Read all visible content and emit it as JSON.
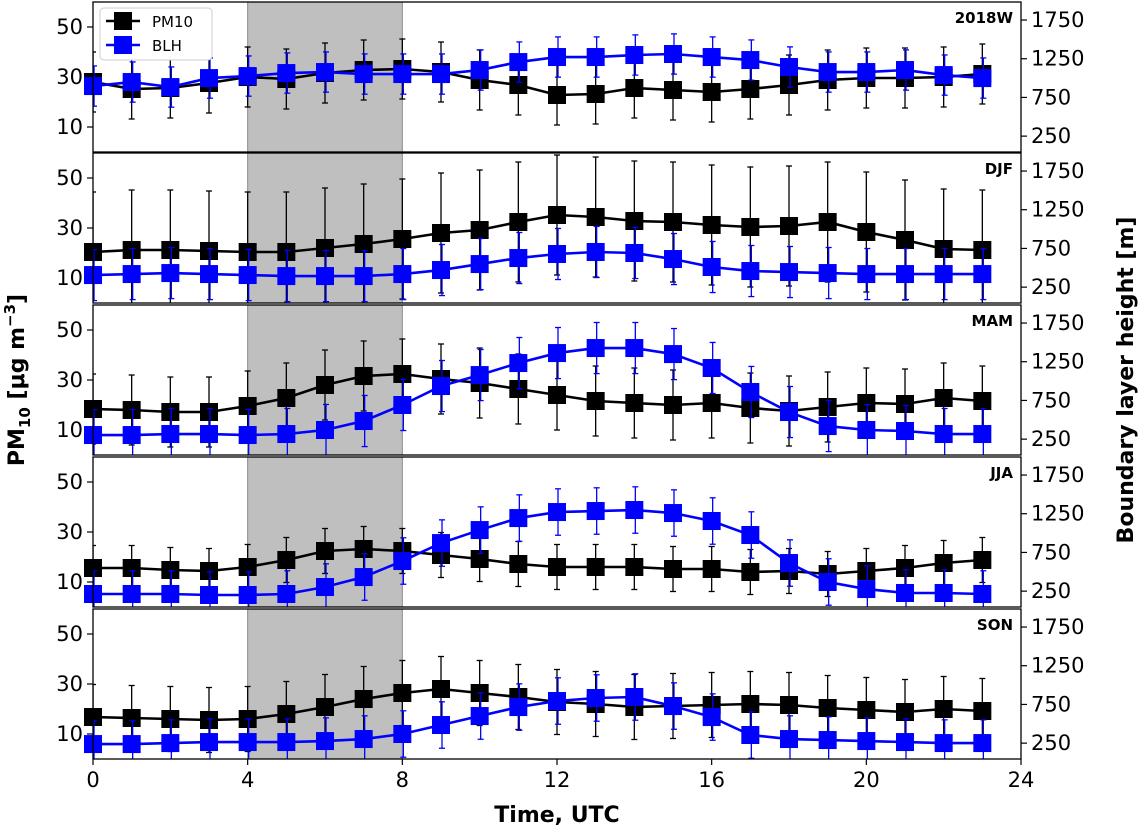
{
  "chart_data": {
    "type": "line",
    "xlabel": "Time, UTC",
    "ylabel_left": "PM",
    "ylabel_left_sub": "10",
    "ylabel_left_units": " [μg m",
    "ylabel_left_sup": "−3",
    "ylabel_left_end": "]",
    "ylabel_right": "Boundary layer height [m]",
    "xlim": [
      0,
      24
    ],
    "xticks": [
      "0",
      "4",
      "8",
      "12",
      "16",
      "20",
      "24"
    ],
    "ylim_left": [
      0,
      60
    ],
    "yticks_left": [
      "10",
      "30",
      "50"
    ],
    "ylim_right": [
      45,
      1983
    ],
    "yticks_right": [
      "250",
      "750",
      "1250",
      "1750"
    ],
    "shaded_region": [
      4,
      8
    ],
    "legend": {
      "placement": "top-left",
      "entries": [
        "PM10",
        "BLH"
      ]
    },
    "colors": {
      "PM10": "#000000",
      "BLH": "#0000ff",
      "shade": "#bfbfbf"
    },
    "x": [
      0,
      1,
      2,
      3,
      4,
      5,
      6,
      7,
      8,
      9,
      10,
      11,
      12,
      13,
      14,
      15,
      16,
      17,
      18,
      19,
      20,
      21,
      22,
      23
    ],
    "panels": [
      {
        "label": "2018W",
        "pm10": [
          28,
          25.2,
          25.6,
          27.6,
          30,
          29.2,
          31.6,
          32.8,
          33.2,
          32,
          28.8,
          26.8,
          22.8,
          23.2,
          25.6,
          24.8,
          24,
          25.2,
          26.8,
          28.8,
          29.6,
          29.6,
          30,
          31.2
        ],
        "pm10_err": 12,
        "blh": [
          897,
          949,
          884,
          1000,
          1026,
          1065,
          1078,
          1052,
          1052,
          1052,
          1104,
          1207,
          1272,
          1272,
          1298,
          1311,
          1272,
          1233,
          1143,
          1078,
          1078,
          1104,
          1039,
          1000
        ],
        "blh_err": 260
      },
      {
        "label": "DJF",
        "pm10": [
          20.4,
          21.2,
          21.2,
          20.8,
          20.4,
          20.4,
          22,
          23.6,
          25.6,
          28,
          29.2,
          32.4,
          35.2,
          34.4,
          32.8,
          32.4,
          31.2,
          30.4,
          30.8,
          32.4,
          28.4,
          25.2,
          21.6,
          21.2
        ],
        "pm10_err": 24,
        "blh": [
          406,
          419,
          432,
          419,
          406,
          393,
          393,
          393,
          419,
          471,
          548,
          626,
          678,
          704,
          691,
          613,
          510,
          458,
          445,
          432,
          419,
          419,
          419,
          419
        ],
        "blh_err": 330
      },
      {
        "label": "MAM",
        "pm10": [
          18.4,
          18,
          17.2,
          17.2,
          19.6,
          22.8,
          28,
          31.6,
          32.4,
          30.4,
          28.8,
          26.4,
          24,
          21.6,
          20.8,
          20,
          20.8,
          18.8,
          17.6,
          19.2,
          20.8,
          20.4,
          22.8,
          21.6
        ],
        "pm10_err": 14,
        "blh": [
          303,
          303,
          316,
          316,
          303,
          316,
          368,
          484,
          691,
          936,
          1078,
          1233,
          1362,
          1427,
          1427,
          1349,
          1169,
          859,
          600,
          419,
          368,
          355,
          316,
          316
        ],
        "blh_err": 330
      },
      {
        "label": "JJA",
        "pm10": [
          15.6,
          15.6,
          14.8,
          14.4,
          16,
          18.8,
          22.4,
          23.2,
          22.4,
          20.8,
          19.2,
          17.2,
          16,
          16,
          16,
          15.2,
          15.2,
          14,
          14.4,
          13.2,
          14.4,
          15.6,
          17.6,
          18.8
        ],
        "pm10_err": 9,
        "blh": [
          213,
          213,
          213,
          200,
          200,
          213,
          303,
          432,
          639,
          871,
          1039,
          1194,
          1272,
          1285,
          1298,
          1259,
          1156,
          975,
          613,
          368,
          277,
          226,
          226,
          213
        ],
        "blh_err": 300
      },
      {
        "label": "SON",
        "pm10": [
          16.8,
          16.4,
          16,
          15.6,
          16,
          18,
          20.8,
          24,
          26.4,
          28,
          26.4,
          24.8,
          22.8,
          22,
          20.8,
          21.2,
          21.6,
          22,
          21.6,
          20.4,
          19.6,
          18.8,
          20,
          19.2
        ],
        "pm10_err": 13,
        "blh": [
          238,
          238,
          251,
          264,
          264,
          264,
          277,
          303,
          368,
          484,
          600,
          716,
          794,
          833,
          846,
          729,
          587,
          355,
          303,
          290,
          277,
          264,
          251,
          251
        ],
        "blh_err": 300
      }
    ]
  }
}
